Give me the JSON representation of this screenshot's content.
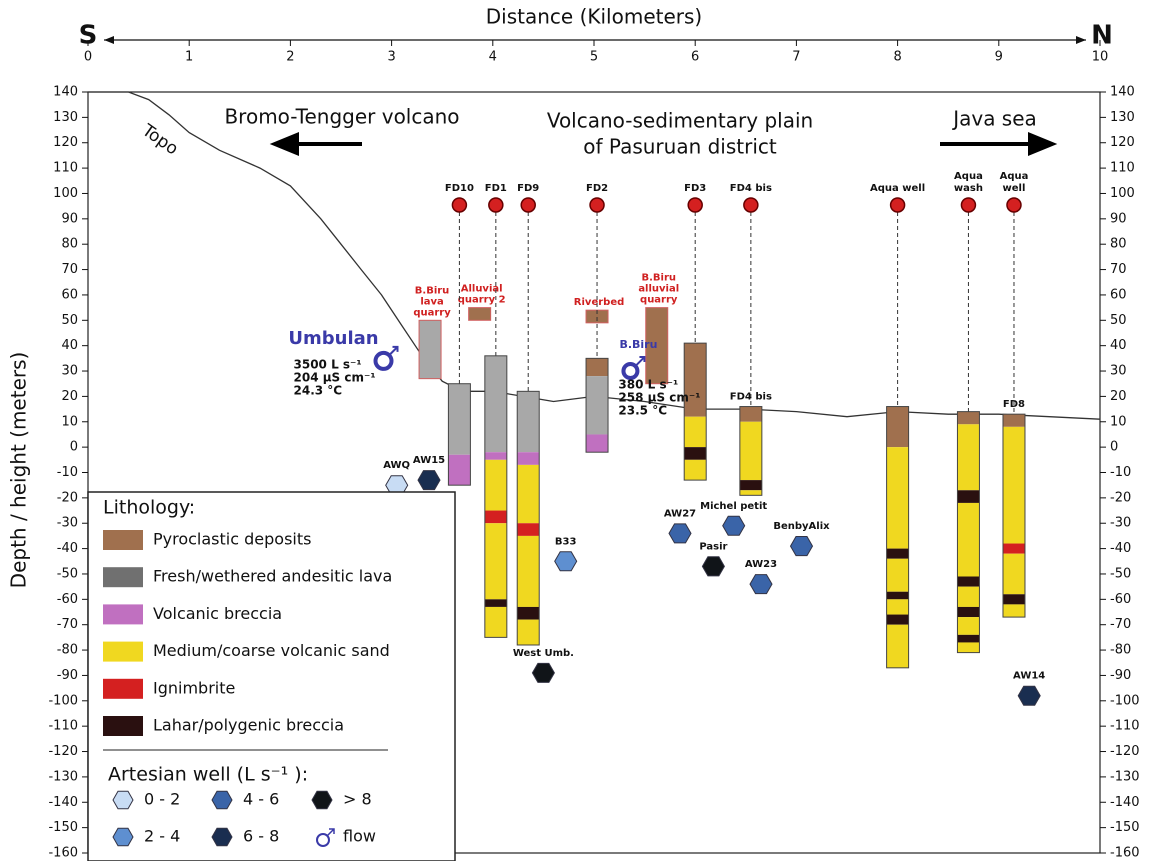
{
  "chart_data": {
    "type": "cross-section",
    "x_label": "Distance (Kilometers)",
    "x_start_label": "S",
    "x_end_label": "N",
    "y_label": "Depth / height (meters)",
    "xlim": [
      0,
      10
    ],
    "xticks": [
      0,
      1,
      2,
      3,
      4,
      5,
      6,
      7,
      8,
      9,
      10
    ],
    "ylim": [
      -160,
      140
    ],
    "yticks": [
      140,
      130,
      120,
      110,
      100,
      90,
      80,
      70,
      60,
      50,
      40,
      30,
      20,
      10,
      0,
      -10,
      -20,
      -30,
      -40,
      -50,
      -60,
      -70,
      -80,
      -90,
      -100,
      -110,
      -120,
      -130,
      -140,
      -150,
      -160
    ],
    "topo": {
      "name": "Topo",
      "color": "#333333",
      "x": [
        0,
        0.4,
        0.6,
        0.8,
        1.0,
        1.3,
        1.7,
        2.0,
        2.3,
        2.5,
        2.7,
        2.9,
        3.1,
        3.3,
        3.5,
        3.7,
        4.0,
        4.3,
        4.6,
        5.0,
        5.5,
        6.0,
        6.5,
        7.0,
        7.5,
        8.0,
        8.5,
        9.0,
        9.5,
        10
      ],
      "values": [
        140,
        140,
        137,
        131,
        124,
        117,
        110,
        103,
        90,
        80,
        70,
        60,
        48,
        36,
        26,
        22,
        22,
        20,
        18,
        20,
        18,
        15,
        15,
        14,
        12,
        14,
        13,
        13,
        12,
        11
      ]
    },
    "annotations": [
      "Bromo-Tengger volcano",
      "Volcano-sedimentary plain",
      "of Pasuruan district",
      "Java sea"
    ],
    "lithology": {
      "title": "Lithology:",
      "classes": [
        {
          "name": "Pyroclastic deposits",
          "color": "#a0704e"
        },
        {
          "name": "Fresh/wethered andesitic lava",
          "color": "#707070"
        },
        {
          "name": "Volcanic breccia",
          "color": "#c070c0"
        },
        {
          "name": "Medium/coarse volcanic sand",
          "color": "#f0d820"
        },
        {
          "name": "Ignimbrite",
          "color": "#d42020"
        },
        {
          "name": "Lahar/polygenic breccia",
          "color": "#2a1010"
        }
      ]
    },
    "boreholes": [
      {
        "name": [
          "FD10"
        ],
        "x": 3.67,
        "layers": [
          {
            "top": 25,
            "bottom": -3,
            "color": "#a8a8a8"
          },
          {
            "top": -3,
            "bottom": -15,
            "color": "#c070c0"
          }
        ]
      },
      {
        "name": [
          "FD1"
        ],
        "x": 4.03,
        "layers": [
          {
            "top": 36,
            "bottom": -2,
            "color": "#a8a8a8"
          },
          {
            "top": -2,
            "bottom": -5,
            "color": "#c070c0"
          },
          {
            "top": -5,
            "bottom": -25,
            "color": "#f0d820"
          },
          {
            "top": -25,
            "bottom": -30,
            "color": "#d42020"
          },
          {
            "top": -30,
            "bottom": -60,
            "color": "#f0d820"
          },
          {
            "top": -60,
            "bottom": -63,
            "color": "#2a1010"
          },
          {
            "top": -63,
            "bottom": -75,
            "color": "#f0d820"
          }
        ]
      },
      {
        "name": [
          "FD9"
        ],
        "x": 4.35,
        "layers": [
          {
            "top": 22,
            "bottom": -2,
            "color": "#a8a8a8"
          },
          {
            "top": -2,
            "bottom": -7,
            "color": "#c070c0"
          },
          {
            "top": -7,
            "bottom": -30,
            "color": "#f0d820"
          },
          {
            "top": -30,
            "bottom": -35,
            "color": "#d42020"
          },
          {
            "top": -35,
            "bottom": -63,
            "color": "#f0d820"
          },
          {
            "top": -63,
            "bottom": -68,
            "color": "#2a1010"
          },
          {
            "top": -68,
            "bottom": -78,
            "color": "#f0d820"
          }
        ]
      },
      {
        "name": [
          "FD2"
        ],
        "x": 5.03,
        "layers": [
          {
            "top": 35,
            "bottom": 28,
            "color": "#a0704e"
          },
          {
            "top": 28,
            "bottom": 5,
            "color": "#a8a8a8"
          },
          {
            "top": 5,
            "bottom": -2,
            "color": "#c070c0"
          }
        ]
      },
      {
        "name": [
          "FD3"
        ],
        "x": 6.0,
        "layers": [
          {
            "top": 41,
            "bottom": 12,
            "color": "#a0704e"
          },
          {
            "top": 12,
            "bottom": 0,
            "color": "#f0d820"
          },
          {
            "top": 0,
            "bottom": -5,
            "color": "#2a1010"
          },
          {
            "top": -5,
            "bottom": -13,
            "color": "#f0d820"
          }
        ]
      },
      {
        "name": [
          "FD4 bis"
        ],
        "column_label": "FD4 bis",
        "x": 6.55,
        "layers": [
          {
            "top": 16,
            "bottom": 10,
            "color": "#a0704e"
          },
          {
            "top": 10,
            "bottom": -13,
            "color": "#f0d820"
          },
          {
            "top": -13,
            "bottom": -17,
            "color": "#2a1010"
          },
          {
            "top": -17,
            "bottom": -19,
            "color": "#f0d820"
          }
        ]
      },
      {
        "name": [
          "Aqua well"
        ],
        "x": 8.0,
        "layers": [
          {
            "top": 16,
            "bottom": 0,
            "color": "#a0704e"
          },
          {
            "top": 0,
            "bottom": -40,
            "color": "#f0d820"
          },
          {
            "top": -40,
            "bottom": -44,
            "color": "#2a1010"
          },
          {
            "top": -44,
            "bottom": -57,
            "color": "#f0d820"
          },
          {
            "top": -57,
            "bottom": -60,
            "color": "#2a1010"
          },
          {
            "top": -60,
            "bottom": -66,
            "color": "#f0d820"
          },
          {
            "top": -66,
            "bottom": -70,
            "color": "#2a1010"
          },
          {
            "top": -70,
            "bottom": -87,
            "color": "#f0d820"
          }
        ]
      },
      {
        "name": [
          "Aqua",
          "wash"
        ],
        "x": 8.7,
        "layers": [
          {
            "top": 14,
            "bottom": 9,
            "color": "#a0704e"
          },
          {
            "top": 9,
            "bottom": -17,
            "color": "#f0d820"
          },
          {
            "top": -17,
            "bottom": -22,
            "color": "#2a1010"
          },
          {
            "top": -22,
            "bottom": -51,
            "color": "#f0d820"
          },
          {
            "top": -51,
            "bottom": -55,
            "color": "#2a1010"
          },
          {
            "top": -55,
            "bottom": -63,
            "color": "#f0d820"
          },
          {
            "top": -63,
            "bottom": -67,
            "color": "#2a1010"
          },
          {
            "top": -67,
            "bottom": -74,
            "color": "#f0d820"
          },
          {
            "top": -74,
            "bottom": -77,
            "color": "#2a1010"
          },
          {
            "top": -77,
            "bottom": -81,
            "color": "#f0d820"
          }
        ]
      },
      {
        "name": [
          "Aqua",
          "well"
        ],
        "column_label": "FD8",
        "x": 9.15,
        "layers": [
          {
            "top": 13,
            "bottom": 8,
            "color": "#a0704e"
          },
          {
            "top": 8,
            "bottom": -38,
            "color": "#f0d820"
          },
          {
            "top": -38,
            "bottom": -42,
            "color": "#d42020"
          },
          {
            "top": -42,
            "bottom": -58,
            "color": "#f0d820"
          },
          {
            "top": -58,
            "bottom": -62,
            "color": "#2a1010"
          },
          {
            "top": -62,
            "bottom": -67,
            "color": "#f0d820"
          }
        ]
      }
    ],
    "samples": [
      {
        "name": [
          "B.Biru",
          "lava",
          "quarry"
        ],
        "x": 3.38,
        "top": 50,
        "bottom": 27,
        "color": "#a8a8a8"
      },
      {
        "name": [
          "Alluvial",
          "quarry 2"
        ],
        "x": 3.87,
        "top": 55,
        "bottom": 50,
        "color": "#a0704e"
      },
      {
        "name": [
          "Riverbed"
        ],
        "x": 5.03,
        "top": 54,
        "bottom": 49,
        "color": "#a0704e"
      },
      {
        "name": [
          "B.Biru",
          "alluvial",
          "quarry"
        ],
        "x": 5.62,
        "top": 55,
        "bottom": 25,
        "color": "#a0704e"
      }
    ],
    "springs": [
      {
        "name": "Umbulan",
        "x": 2.92,
        "y": 34,
        "lines": [
          "3500 L s⁻¹",
          "204 µS cm⁻¹",
          "24.3 °C"
        ]
      },
      {
        "name": "B.Biru",
        "x": 5.36,
        "y": 30,
        "lines": [
          "380 L s⁻¹",
          "258 µS cm⁻¹",
          "23.5 °C"
        ]
      }
    ],
    "wells": {
      "title": "Artesian well (L s⁻¹ ):",
      "flow_label": "flow",
      "classes": [
        {
          "label": "0 - 2",
          "color": "#c8dcf4"
        },
        {
          "label": "2 - 4",
          "color": "#5e8fd0"
        },
        {
          "label": "4 - 6",
          "color": "#3a64a8"
        },
        {
          "label": "6 - 8",
          "color": "#1a2e50"
        },
        {
          "label": "> 8",
          "color": "#101418"
        }
      ],
      "points": [
        {
          "name": "AWQ",
          "x": 3.05,
          "y": -15,
          "color": "#c8dcf4"
        },
        {
          "name": "AW15",
          "x": 3.37,
          "y": -13,
          "color": "#1a2e50"
        },
        {
          "name": "B33",
          "x": 4.72,
          "y": -45,
          "color": "#5e8fd0"
        },
        {
          "name": "West Umb.",
          "x": 4.5,
          "y": -89,
          "color": "#101418"
        },
        {
          "name": "AW27",
          "x": 5.85,
          "y": -34,
          "color": "#3a64a8"
        },
        {
          "name": "Michel petit",
          "x": 6.38,
          "y": -31,
          "color": "#3a64a8"
        },
        {
          "name": "Pasir",
          "x": 6.18,
          "y": -47,
          "color": "#101418"
        },
        {
          "name": "AW23",
          "x": 6.65,
          "y": -54,
          "color": "#3a64a8"
        },
        {
          "name": "BenbyAlix",
          "x": 7.05,
          "y": -39,
          "color": "#3a64a8"
        },
        {
          "name": "AW14",
          "x": 9.3,
          "y": -98,
          "color": "#1a2e50"
        }
      ]
    }
  }
}
